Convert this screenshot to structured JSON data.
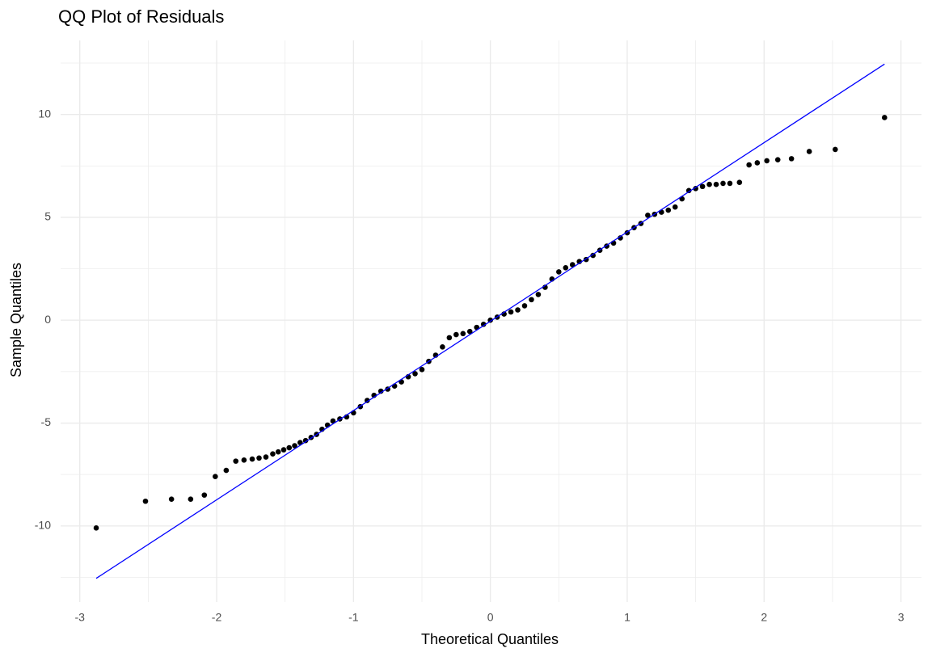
{
  "chart_data": {
    "type": "scatter",
    "title": "QQ Plot of Residuals",
    "x_label": "Theoretical Quantiles",
    "y_label": "Sample Quantiles",
    "xlim": [
      -3.14,
      3.15
    ],
    "ylim": [
      -13.7,
      13.6
    ],
    "xticks": [
      -3,
      -2,
      -1,
      0,
      1,
      2,
      3
    ],
    "yticks": [
      -10,
      -5,
      0,
      5,
      10
    ],
    "x_minor_grid": [
      -2.5,
      -1.5,
      -0.5,
      0.5,
      1.5,
      2.5
    ],
    "y_minor_grid": [
      -12.5,
      -7.5,
      -2.5,
      2.5,
      7.5,
      12.5
    ],
    "grid": true,
    "series": [
      {
        "type": "scatter",
        "color": "#000000",
        "x": [
          -2.88,
          -2.52,
          -2.33,
          -2.19,
          -2.09,
          -2.01,
          -1.93,
          -1.86,
          -1.8,
          -1.74,
          -1.69,
          -1.64,
          -1.59,
          -1.55,
          -1.51,
          -1.47,
          -1.43,
          -1.39,
          -1.35,
          -1.31,
          -1.27,
          -1.23,
          -1.19,
          -1.15,
          -1.1,
          -1.05,
          -1.0,
          -0.95,
          -0.9,
          -0.85,
          -0.8,
          -0.75,
          -0.7,
          -0.65,
          -0.6,
          -0.55,
          -0.5,
          -0.45,
          -0.4,
          -0.35,
          -0.3,
          -0.25,
          -0.2,
          -0.15,
          -0.1,
          -0.05,
          0,
          0.05,
          0.1,
          0.15,
          0.2,
          0.25,
          0.3,
          0.35,
          0.4,
          0.45,
          0.5,
          0.55,
          0.6,
          0.65,
          0.7,
          0.75,
          0.8,
          0.85,
          0.9,
          0.95,
          1.0,
          1.05,
          1.1,
          1.15,
          1.2,
          1.25,
          1.3,
          1.35,
          1.4,
          1.45,
          1.5,
          1.55,
          1.6,
          1.65,
          1.7,
          1.75,
          1.82,
          1.89,
          1.95,
          2.02,
          2.1,
          2.2,
          2.33,
          2.52,
          2.88
        ],
        "values": [
          -10.1,
          -8.8,
          -8.7,
          -8.7,
          -8.5,
          -7.6,
          -7.3,
          -6.85,
          -6.8,
          -6.75,
          -6.7,
          -6.65,
          -6.5,
          -6.4,
          -6.3,
          -6.2,
          -6.1,
          -5.95,
          -5.85,
          -5.7,
          -5.55,
          -5.3,
          -5.1,
          -4.9,
          -4.8,
          -4.7,
          -4.5,
          -4.2,
          -3.9,
          -3.65,
          -3.45,
          -3.35,
          -3.2,
          -3.0,
          -2.75,
          -2.6,
          -2.4,
          -2.0,
          -1.7,
          -1.3,
          -0.85,
          -0.7,
          -0.65,
          -0.55,
          -0.35,
          -0.2,
          0,
          0.15,
          0.3,
          0.4,
          0.5,
          0.7,
          1.0,
          1.25,
          1.6,
          2.0,
          2.35,
          2.55,
          2.7,
          2.85,
          2.95,
          3.15,
          3.4,
          3.6,
          3.75,
          4.0,
          4.25,
          4.5,
          4.7,
          5.1,
          5.15,
          5.25,
          5.35,
          5.5,
          5.9,
          6.3,
          6.4,
          6.5,
          6.6,
          6.6,
          6.65,
          6.65,
          6.7,
          7.55,
          7.65,
          7.75,
          7.8,
          7.85,
          8.2,
          8.3,
          9.85
        ]
      },
      {
        "type": "line",
        "color": "#0000ff",
        "x": [
          -2.88,
          2.88
        ],
        "values": [
          -12.55,
          12.45
        ]
      }
    ]
  }
}
